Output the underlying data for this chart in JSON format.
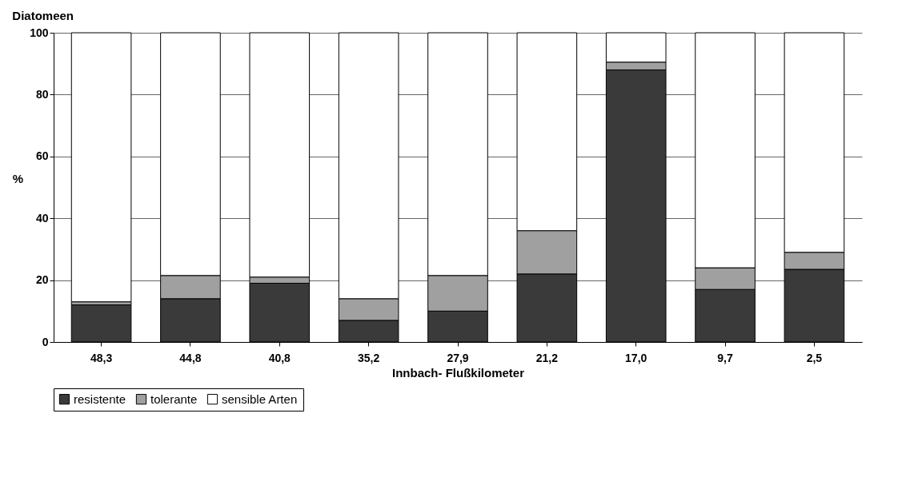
{
  "chart_data": {
    "type": "bar",
    "title": "Diatomeen",
    "xlabel": "Innbach- Flußkilometer",
    "ylabel": "%",
    "categories": [
      "48,3",
      "44,8",
      "40,8",
      "35,2",
      "27,9",
      "21,2",
      "17,0",
      "9,7",
      "2,5"
    ],
    "stacked": true,
    "series": [
      {
        "name": "resistente",
        "color": "#3a3a3a",
        "values": [
          12,
          14,
          19,
          7,
          10,
          22,
          88,
          17,
          23.5
        ]
      },
      {
        "name": "tolerante",
        "color": "#a0a0a0",
        "values": [
          1,
          7.5,
          2,
          7,
          11.5,
          14,
          2.5,
          7,
          5.5
        ]
      },
      {
        "name": "sensible Arten",
        "color": "#ffffff",
        "values": [
          87,
          78.5,
          79,
          86,
          78.5,
          64,
          9.5,
          76,
          71
        ]
      }
    ],
    "ylim": [
      0,
      100
    ],
    "yticks": [
      0,
      20,
      40,
      60,
      80,
      100
    ],
    "grid": "y",
    "legend": "bottom"
  }
}
